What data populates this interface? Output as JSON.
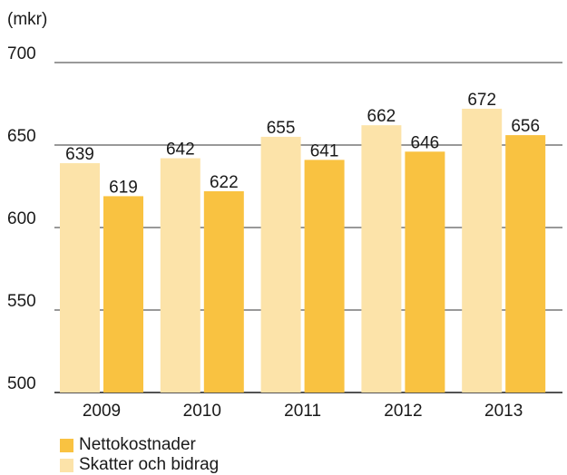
{
  "chart_data": {
    "type": "bar",
    "ylabel": "(mkr)",
    "ylim": [
      500,
      700
    ],
    "yticks": [
      500,
      550,
      600,
      650,
      700
    ],
    "grid": true,
    "legend_position": "bottom-left",
    "categories": [
      "2009",
      "2010",
      "2011",
      "2012",
      "2013"
    ],
    "series": [
      {
        "name": "Skatter och bidrag",
        "color": "#fce3a9",
        "values": [
          639,
          642,
          655,
          662,
          672
        ]
      },
      {
        "name": "Nettokostnader",
        "color": "#f9c241",
        "values": [
          619,
          622,
          641,
          646,
          656
        ]
      }
    ]
  }
}
